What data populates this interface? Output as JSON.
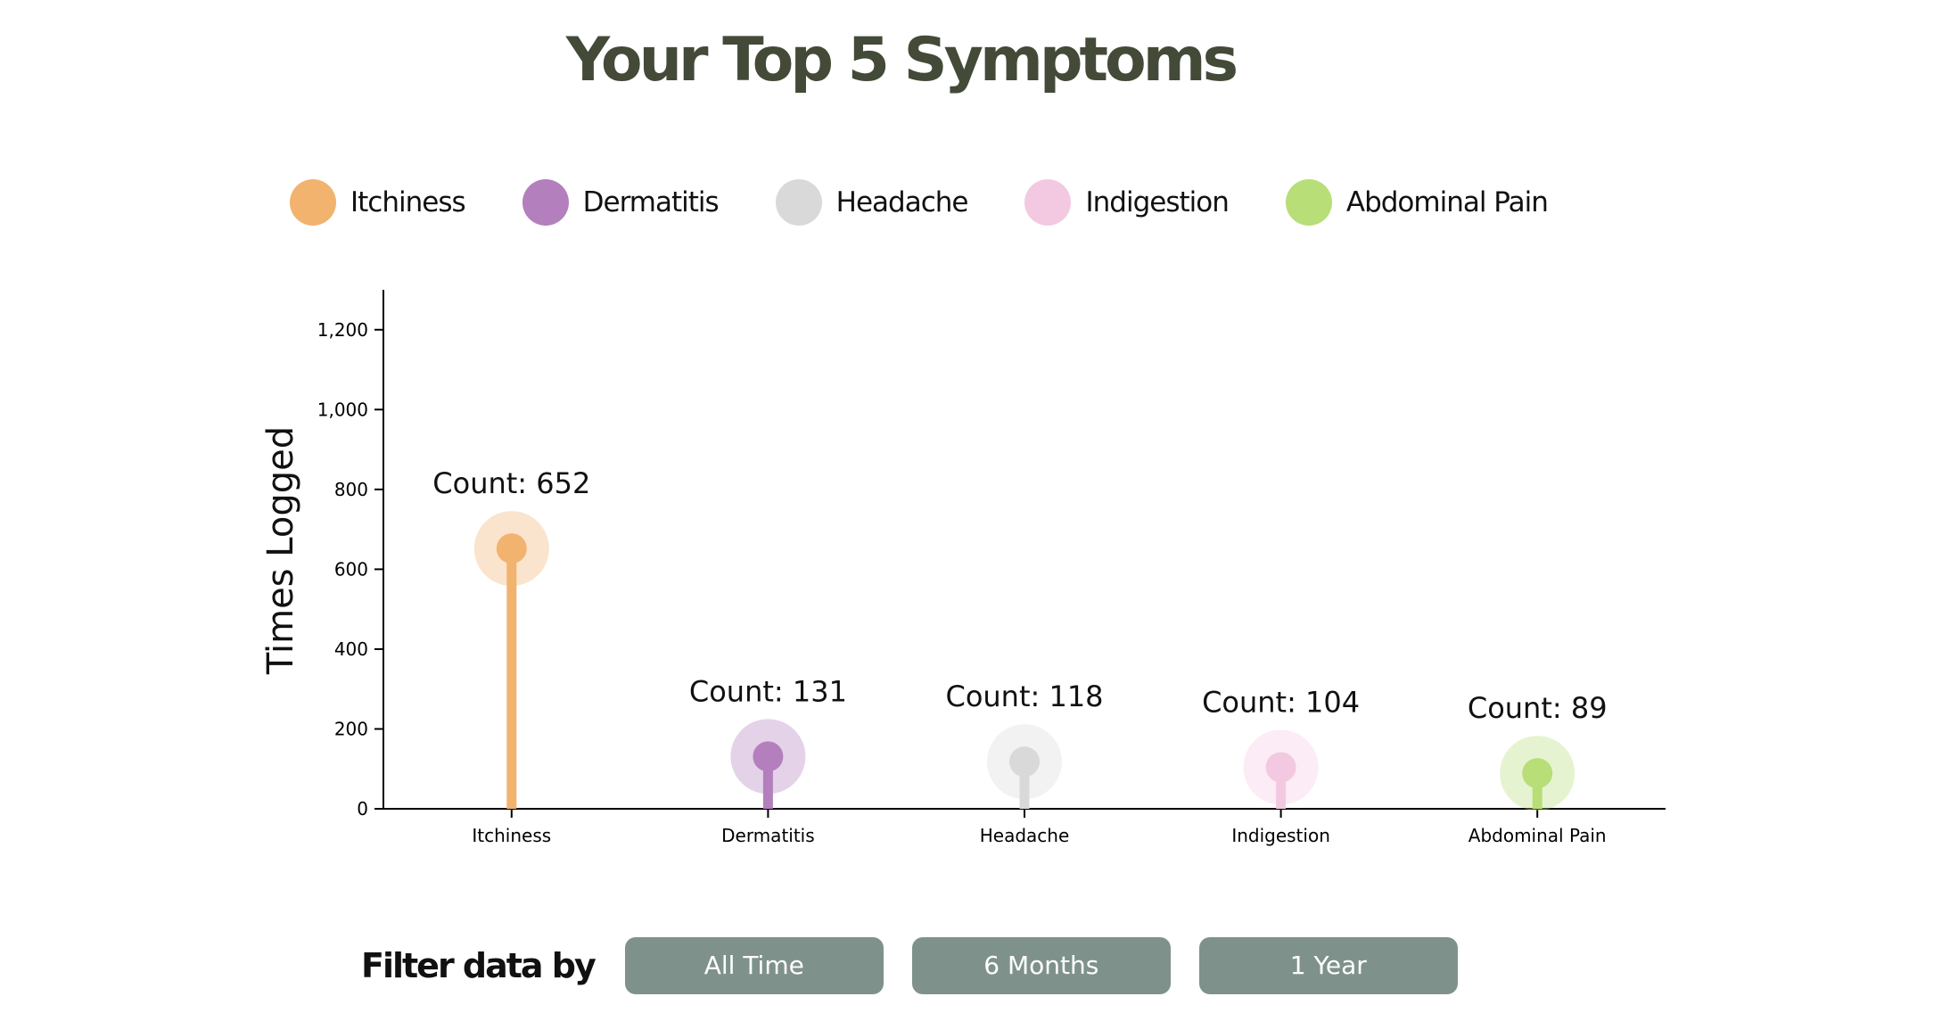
{
  "title": "Your Top 5 Symptoms",
  "filter": {
    "label": "Filter data by",
    "options": [
      "All Time",
      "6 Months",
      "1 Year"
    ]
  },
  "chart_data": {
    "type": "lollipop",
    "categories": [
      "Itchiness",
      "Dermatitis",
      "Headache",
      "Indigestion",
      "Abdominal Pain"
    ],
    "values": [
      652,
      131,
      118,
      104,
      89
    ],
    "value_label_prefix": "Count: ",
    "colors": [
      "#f2b36f",
      "#b37fbc",
      "#d9d9d9",
      "#f3c9e2",
      "#b8de77"
    ],
    "ylabel": "Times Logged",
    "ylim": [
      0,
      1300
    ],
    "yticks": [
      0,
      200,
      400,
      600,
      800,
      1000,
      1200
    ],
    "ytick_labels": [
      "0",
      "200",
      "400",
      "600",
      "800",
      "1,000",
      "1,200"
    ],
    "legend": [
      "Itchiness",
      "Dermatitis",
      "Headache",
      "Indigestion",
      "Abdominal Pain"
    ],
    "legend_position": "top",
    "grid": false
  }
}
